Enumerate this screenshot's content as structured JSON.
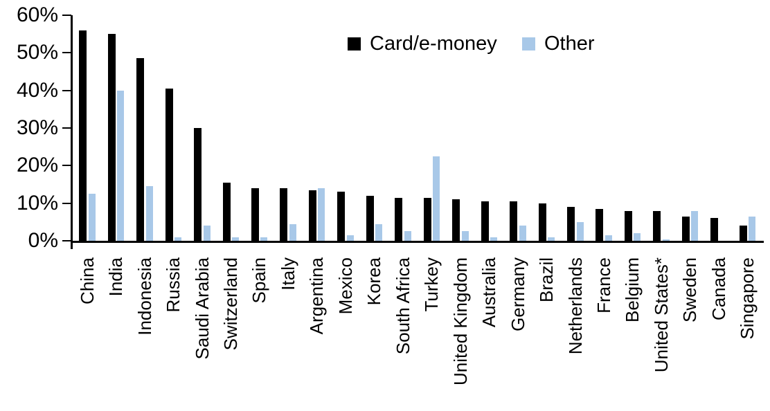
{
  "chart_data": {
    "type": "bar",
    "title": "",
    "categories": [
      "China",
      "India",
      "Indonesia",
      "Russia",
      "Saudi Arabia",
      "Switzerland",
      "Spain",
      "Italy",
      "Argentina",
      "Mexico",
      "Korea",
      "South Africa",
      "Turkey",
      "United Kingdom",
      "Australia",
      "Germany",
      "Brazil",
      "Netherlands",
      "France",
      "Belgium",
      "United States*",
      "Sweden",
      "Canada",
      "Singapore"
    ],
    "series": [
      {
        "name": "Card/e-money",
        "color": "#000000",
        "values": [
          56,
          55,
          48.5,
          40.5,
          30,
          15.5,
          14,
          14,
          13.5,
          13,
          12,
          11.5,
          11.5,
          11,
          10.5,
          10.5,
          10,
          9,
          8.5,
          8,
          8,
          6.5,
          6,
          4
        ]
      },
      {
        "name": "Other",
        "color": "#A8C8E8",
        "values": [
          12.5,
          40,
          14.5,
          1,
          4,
          1,
          1,
          4.5,
          14,
          1.5,
          4.5,
          2.5,
          22.5,
          2.5,
          1,
          4,
          1,
          5,
          1.5,
          2,
          0.3,
          8,
          0,
          6.5
        ]
      }
    ],
    "y_axis": {
      "min": 0,
      "max": 60,
      "tick_step": 10,
      "tick_labels": [
        "0%",
        "10%",
        "20%",
        "30%",
        "40%",
        "50%",
        "60%"
      ],
      "gridlines": false
    },
    "x_axis": {
      "label_rotation_degrees": -90
    },
    "legend": {
      "position": "top-center",
      "entries": [
        "Card/e-money",
        "Other"
      ]
    }
  },
  "colors": {
    "background": "#FFFFFF",
    "axis": "#000000",
    "card_e_money_bar": "#000000",
    "other_bar": "#A8C8E8"
  }
}
